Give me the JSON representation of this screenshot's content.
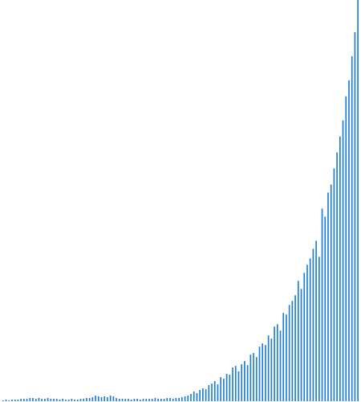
{
  "chart_data": {
    "type": "bar",
    "bar_color": "#1c7ed6",
    "grid": false,
    "legend": "none",
    "ylim": [
      0,
      500
    ],
    "values": [
      1,
      2,
      1,
      2,
      2,
      2,
      3,
      3,
      3,
      4,
      4,
      3,
      4,
      3,
      3,
      4,
      3,
      3,
      3,
      2,
      3,
      2,
      2,
      3,
      2,
      2,
      3,
      3,
      4,
      4,
      5,
      7,
      6,
      5,
      6,
      5,
      7,
      6,
      4,
      3,
      3,
      3,
      3,
      2,
      3,
      3,
      2,
      3,
      3,
      3,
      3,
      4,
      3,
      3,
      3,
      4,
      4,
      3,
      4,
      4,
      5,
      6,
      7,
      9,
      12,
      10,
      14,
      16,
      15,
      20,
      22,
      25,
      21,
      30,
      28,
      34,
      33,
      42,
      44,
      37,
      46,
      50,
      45,
      58,
      60,
      55,
      68,
      72,
      70,
      82,
      78,
      93,
      96,
      88,
      110,
      108,
      120,
      125,
      132,
      150,
      140,
      160,
      170,
      178,
      190,
      200,
      180,
      240,
      230,
      260,
      270,
      290,
      310,
      330,
      350,
      380,
      400,
      430,
      460,
      500
    ]
  }
}
